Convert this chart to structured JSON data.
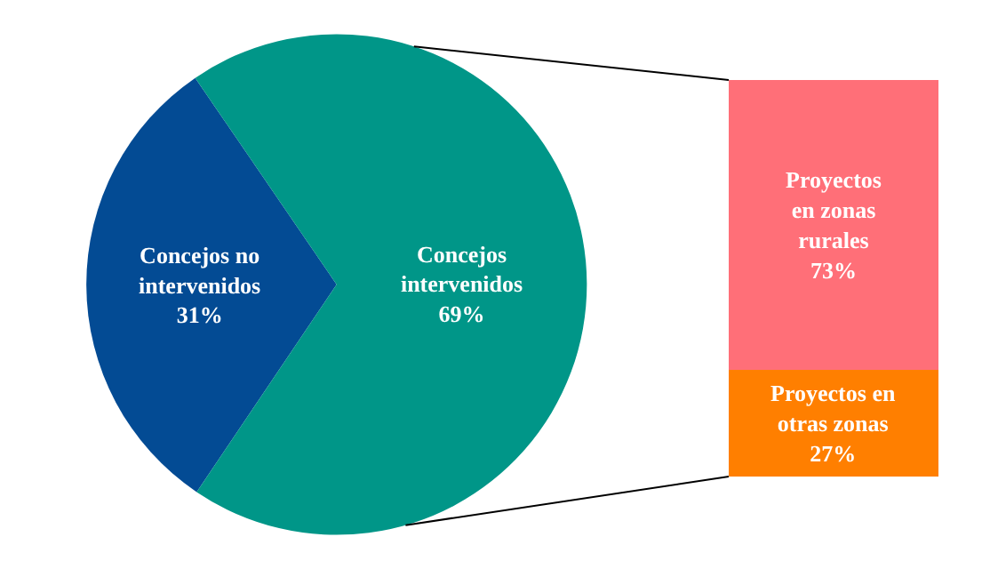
{
  "chart_data": [
    {
      "type": "pie",
      "categories": [
        "Concejos no intervenidos",
        "Concejos intervenidos"
      ],
      "values": [
        31,
        69
      ],
      "colors": [
        "#034b94",
        "#009688"
      ],
      "value_labels": [
        "31%",
        "69%"
      ]
    },
    {
      "type": "bar",
      "stacked": true,
      "categories": [
        null
      ],
      "relative": false,
      "ylim": [
        0,
        100
      ],
      "tick_labels": false,
      "series": [
        {
          "name": "Proyectos en otras zonas",
          "color": "#ff7f00",
          "values": [
            27
          ],
          "value_labels": [
            "27%"
          ]
        },
        {
          "name": "Proyectos en zonas rurales",
          "color": "#ff6f78",
          "values": [
            73
          ],
          "value_labels": [
            "73%"
          ]
        }
      ]
    }
  ]
}
